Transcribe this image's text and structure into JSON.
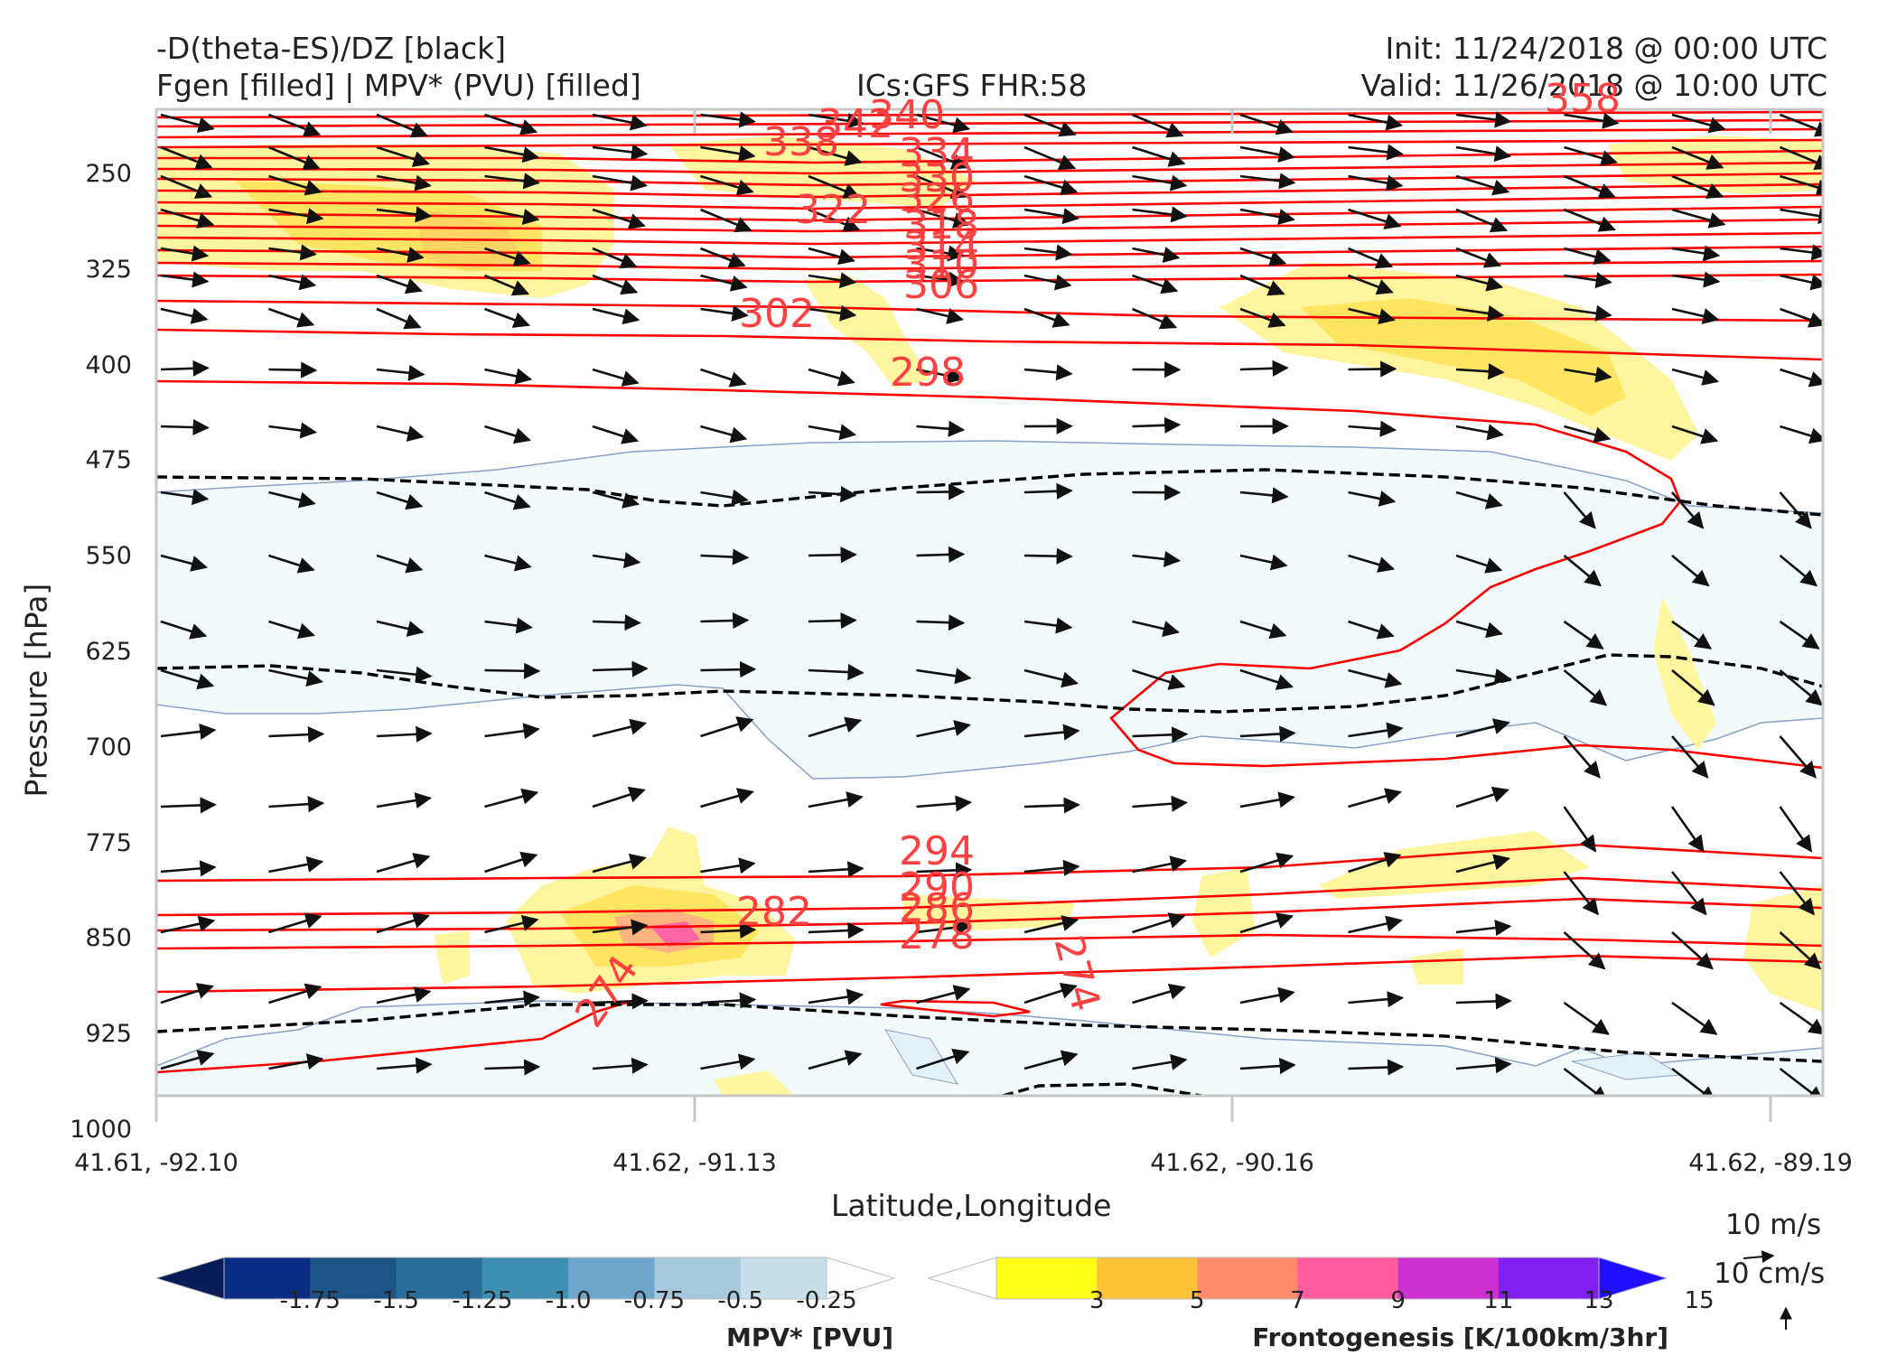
{
  "header": {
    "title_left_1": "-D(theta-ES)/DZ [black]",
    "title_left_2": "Fgen [filled] | MPV* (PVU) [filled]",
    "title_center": "ICs:GFS FHR:58",
    "title_right_1": "Init: 11/24/2018 @ 00:00 UTC",
    "title_right_2": "Valid: 11/26/2018 @ 10:00 UTC"
  },
  "chart_data": {
    "type": "contour",
    "ylabel": "Pressure [hPa]",
    "xlabel": "Latitude,Longitude",
    "y_axis": {
      "inverted": true,
      "ylim": [
        1000,
        190
      ],
      "ticks": [
        250,
        325,
        400,
        475,
        550,
        625,
        700,
        775,
        850,
        925,
        1000
      ]
    },
    "x_ticks": [
      "41.61, -92.10",
      "41.62, -91.13",
      "41.62, -90.16",
      "41.62, -89.19"
    ],
    "theta_es_contour_labels": [
      "358",
      "342",
      "340",
      "338",
      "334",
      "330",
      "326",
      "322",
      "318",
      "314",
      "310",
      "306",
      "302",
      "298",
      "294",
      "290",
      "286",
      "282",
      "278",
      "274",
      "274"
    ],
    "mpv_colorbar": {
      "label": "MPV* [PVU]",
      "levels": [
        "-1.75",
        "-1.5",
        "-1.25",
        "-1.0",
        "-0.75",
        "-0.5",
        "-0.25"
      ],
      "colors": [
        "#081d58",
        "#0c2c84",
        "#1d5487",
        "#2a6f9c",
        "#3f8fb5",
        "#6ea7cc",
        "#a6c9dc",
        "#c6dfea",
        "#ffffff"
      ]
    },
    "fgen_colorbar": {
      "label": "Frontogenesis [K/100km/3hr]",
      "levels": [
        "3",
        "5",
        "7",
        "9",
        "11",
        "13",
        "15"
      ],
      "colors": [
        "#ffffff",
        "#ffff1a",
        "#ffc33a",
        "#ff8c6a",
        "#ff5ca0",
        "#cc30d0",
        "#8020f0",
        "#2010ff"
      ]
    },
    "wind_key": {
      "horizontal": "10 m/s",
      "vertical": "10 cm/s"
    },
    "colors": {
      "theta_contours": "#ff0000",
      "dthetadz": "#000000",
      "wind_vectors": "#111111",
      "mpv_fill": "#f3fafc",
      "mpv_edge": "#8aa0c8"
    }
  }
}
